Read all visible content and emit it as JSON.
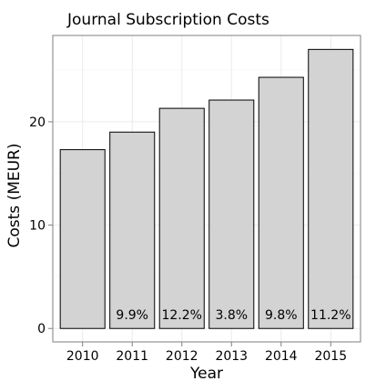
{
  "chart_data": {
    "type": "bar",
    "title": "Journal Subscription Costs",
    "xlabel": "Year",
    "ylabel": "Costs (MEUR)",
    "categories": [
      "2010",
      "2011",
      "2012",
      "2013",
      "2014",
      "2015"
    ],
    "values": [
      17.3,
      19.0,
      21.3,
      22.1,
      24.3,
      27.0
    ],
    "bar_labels": [
      "",
      "9.9%",
      "12.2%",
      "3.8%",
      "9.8%",
      "11.2%"
    ],
    "ylim": [
      -1.3,
      28.35
    ],
    "yticks": [
      0,
      10,
      20
    ],
    "grid": true,
    "legend": "none",
    "colors": {
      "bar_fill": "#d3d3d3",
      "bar_stroke": "#000000",
      "panel_border": "#7f7f7f",
      "grid_major": "#ebebeb",
      "grid_minor": "#f5f5f5",
      "text": "#000000"
    }
  }
}
